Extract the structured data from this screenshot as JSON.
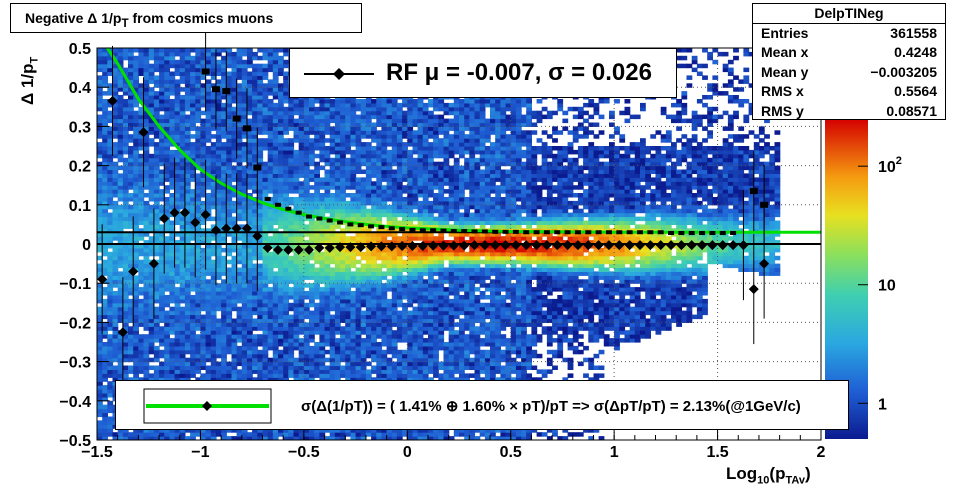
{
  "title": "Negative Δ 1/p_T from cosmics muons",
  "title_main": "Negative Δ 1/p",
  "title_sub": "T",
  "title_tail": " from cosmics muons",
  "stats": {
    "name": "DelpTINeg",
    "rows": [
      {
        "label": "Entries",
        "value": "361558"
      },
      {
        "label": "Mean x",
        "value": "0.4248"
      },
      {
        "label": "Mean y",
        "value": "−0.003205"
      },
      {
        "label": "RMS x",
        "value": "0.5564"
      },
      {
        "label": "RMS y",
        "value": "0.08571"
      }
    ]
  },
  "rf_label": "RF μ = -0.007, σ =   0.026",
  "fit_label": "σ(Δ(1/pT)) = ( 1.41% ⊕  1.60% × pT)/pT => σ(ΔpT/pT) =  2.13%(@1GeV/c)",
  "ylabel_main": "Δ 1/p",
  "ylabel_sub": "T",
  "xlabel_main": "Log",
  "xlabel_sub1": "10",
  "xlabel_mid": "(p",
  "xlabel_sub2": "TAv",
  "xlabel_end": ")",
  "colors": {
    "fit_curve": "#00e000",
    "palette_low": "#1a1a8c",
    "palette_high": "#d40000"
  },
  "chart_data": {
    "type": "heatmap",
    "xlim": [
      -1.5,
      2.0
    ],
    "ylim": [
      -0.5,
      0.5
    ],
    "x_ticks": [
      "−1.5",
      "−1",
      "−0.5",
      "0",
      "0.5",
      "1",
      "1.5",
      "2"
    ],
    "x_tick_values": [
      -1.5,
      -1,
      -0.5,
      0,
      0.5,
      1,
      1.5,
      2
    ],
    "y_ticks": [
      "−0.5",
      "−0.4",
      "−0.3",
      "−0.2",
      "−0.1",
      "0",
      "0.1",
      "0.2",
      "0.3",
      "0.4",
      "0.5"
    ],
    "y_tick_values": [
      -0.5,
      -0.4,
      -0.3,
      -0.2,
      -0.1,
      0,
      0.1,
      0.2,
      0.3,
      0.4,
      0.5
    ],
    "z_scale": "log",
    "z_ticks": [
      "1",
      "10",
      "10^2"
    ],
    "z_tick_values": [
      1,
      10,
      100
    ],
    "z_range": [
      0.5,
      250
    ],
    "grid": true,
    "mean_series": {
      "x": [
        -1.475,
        -1.425,
        -1.375,
        -1.325,
        -1.275,
        -1.225,
        -1.175,
        -1.125,
        -1.075,
        -1.025,
        -0.975,
        -0.925,
        -0.875,
        -0.825,
        -0.775,
        -0.725,
        -0.675,
        -0.625,
        -0.575,
        -0.525,
        -0.475,
        -0.425,
        -0.375,
        -0.325,
        -0.275,
        -0.225,
        -0.175,
        -0.125,
        -0.075,
        -0.025,
        0.025,
        0.075,
        0.125,
        0.175,
        0.225,
        0.275,
        0.325,
        0.375,
        0.425,
        0.475,
        0.525,
        0.575,
        0.625,
        0.675,
        0.725,
        0.775,
        0.825,
        0.875,
        0.925,
        0.975,
        1.025,
        1.075,
        1.125,
        1.175,
        1.225,
        1.275,
        1.325,
        1.375,
        1.425,
        1.475,
        1.525,
        1.575,
        1.625,
        1.675,
        1.725
      ],
      "y": [
        -0.09,
        0.365,
        -0.225,
        -0.07,
        0.285,
        -0.05,
        0.065,
        0.08,
        0.08,
        0.055,
        0.075,
        0.035,
        0.04,
        0.04,
        0.04,
        0.02,
        -0.01,
        -0.015,
        -0.015,
        -0.015,
        -0.015,
        -0.01,
        -0.01,
        -0.008,
        -0.008,
        -0.008,
        -0.006,
        -0.006,
        -0.006,
        -0.005,
        -0.005,
        -0.005,
        -0.004,
        -0.004,
        -0.004,
        -0.004,
        -0.003,
        -0.003,
        -0.003,
        -0.003,
        -0.003,
        -0.003,
        -0.003,
        -0.003,
        -0.003,
        -0.003,
        -0.003,
        -0.003,
        -0.003,
        -0.003,
        -0.003,
        -0.003,
        -0.003,
        -0.003,
        -0.003,
        -0.003,
        -0.003,
        -0.003,
        -0.003,
        -0.003,
        -0.003,
        -0.003,
        -0.003,
        -0.115,
        -0.05
      ]
    },
    "sigma_series": {
      "x": [
        -1.475,
        -1.425,
        -1.375,
        -1.325,
        -1.275,
        -1.225,
        -1.175,
        -1.125,
        -1.075,
        -1.025,
        -0.975,
        -0.925,
        -0.875,
        -0.825,
        -0.775,
        -0.725,
        -0.675,
        -0.625,
        -0.575,
        -0.525,
        -0.475,
        -0.425,
        -0.375,
        -0.325,
        -0.275,
        -0.225,
        -0.175,
        -0.125,
        -0.075,
        -0.025,
        0.025,
        0.075,
        0.125,
        0.175,
        0.225,
        0.275,
        0.325,
        0.375,
        0.425,
        0.475,
        0.525,
        0.575,
        0.625,
        0.675,
        0.725,
        0.775,
        0.825,
        0.875,
        0.925,
        0.975,
        1.025,
        1.075,
        1.125,
        1.175,
        1.225,
        1.275,
        1.325,
        1.375,
        1.425,
        1.475,
        1.525,
        1.575,
        1.625,
        1.675,
        1.725,
        1.775,
        1.825,
        1.875,
        1.925,
        1.975
      ],
      "y": [
        null,
        null,
        null,
        null,
        null,
        null,
        null,
        null,
        null,
        null,
        0.44,
        0.395,
        0.39,
        0.32,
        0.295,
        0.195,
        0.115,
        0.1,
        0.09,
        0.08,
        0.07,
        0.065,
        0.06,
        0.055,
        0.05,
        0.048,
        0.045,
        0.043,
        0.04,
        0.038,
        0.036,
        0.035,
        0.035,
        0.034,
        0.033,
        0.033,
        0.032,
        0.032,
        0.031,
        0.031,
        0.031,
        0.03,
        0.03,
        0.03,
        0.03,
        0.03,
        0.03,
        0.03,
        0.03,
        0.03,
        0.03,
        0.03,
        0.03,
        0.03,
        0.03,
        0.028,
        0.028,
        0.028,
        0.028,
        0.028,
        0.028,
        0.028,
        null,
        0.135,
        0.1,
        null,
        null,
        null,
        null,
        null
      ]
    },
    "fit_curve_formula": "sqrt(0.0141^2 + (0.016*pT)^2)/pT scaled",
    "fit_curve_points": {
      "x": [
        -1.45,
        -1.4,
        -1.3,
        -1.2,
        -1.1,
        -1.0,
        -0.9,
        -0.8,
        -0.7,
        -0.6,
        -0.5,
        -0.4,
        -0.3,
        -0.2,
        -0.1,
        0,
        0.25,
        0.5,
        0.75,
        1.0,
        1.25,
        1.5,
        1.75,
        2.0
      ],
      "y": [
        0.5,
        0.46,
        0.37,
        0.3,
        0.24,
        0.19,
        0.155,
        0.127,
        0.105,
        0.088,
        0.075,
        0.065,
        0.057,
        0.05,
        0.045,
        0.041,
        0.035,
        0.032,
        0.031,
        0.03,
        0.03,
        0.03,
        0.03,
        0.03
      ]
    },
    "rf_mean": -0.007,
    "rf_sigma": 0.026,
    "legend_rf": "top-center",
    "legend_fit": "bottom-center"
  }
}
